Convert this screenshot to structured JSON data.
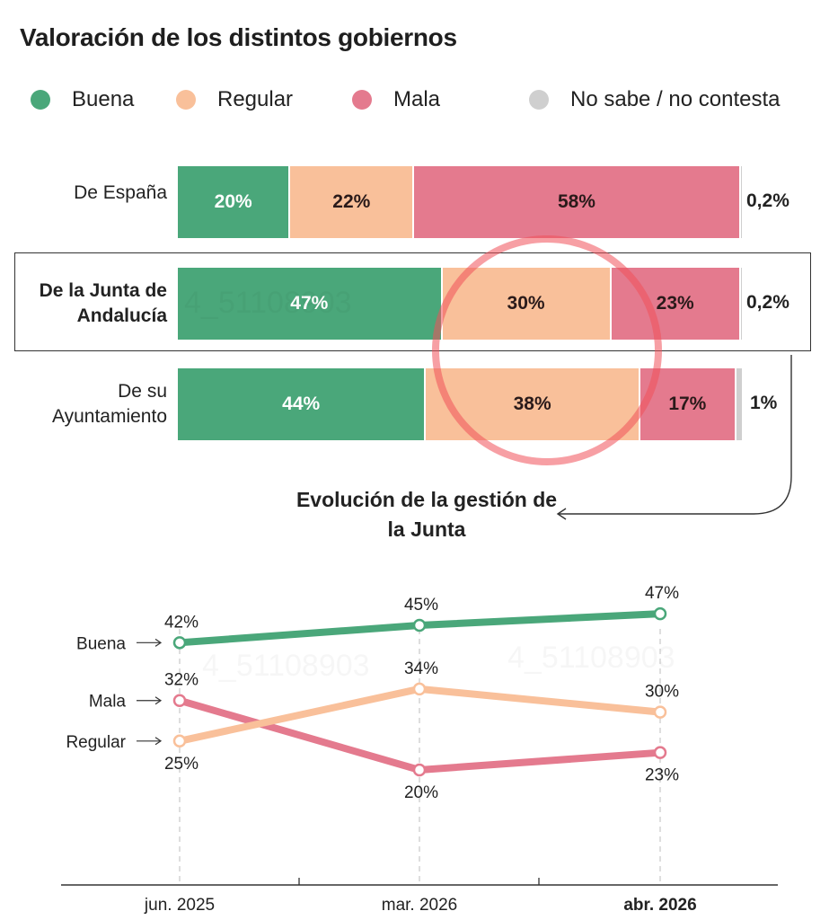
{
  "title": "Valoración de los distintos gobiernos",
  "legend": [
    {
      "label": "Buena",
      "color": "#4aa77a"
    },
    {
      "label": "Regular",
      "color": "#f9c09a"
    },
    {
      "label": "Mala",
      "color": "#e47a8e"
    },
    {
      "label": "No sabe / no contesta",
      "color": "#cfcfcf"
    }
  ],
  "watermark": "4_51108903",
  "chart_data": [
    {
      "type": "bar",
      "stacked": true,
      "orientation": "horizontal",
      "title": "Valoración de los distintos gobiernos",
      "categories": [
        "De España",
        "De la Junta de Andalucía",
        "De su Ayuntamiento"
      ],
      "category_lines": [
        [
          "De España"
        ],
        [
          "De la Junta de",
          "Andalucía"
        ],
        [
          "De su",
          "Ayuntamiento"
        ]
      ],
      "highlighted_category": "De la Junta de Andalucía",
      "series": [
        {
          "name": "Buena",
          "color": "#4aa77a",
          "values": [
            20,
            47,
            44
          ],
          "labels": [
            "20%",
            "47%",
            "44%"
          ]
        },
        {
          "name": "Regular",
          "color": "#f9c09a",
          "values": [
            22,
            30,
            38
          ],
          "labels": [
            "22%",
            "30%",
            "38%"
          ]
        },
        {
          "name": "Mala",
          "color": "#e47a8e",
          "values": [
            58,
            23,
            17
          ],
          "labels": [
            "58%",
            "23%",
            "17%"
          ]
        },
        {
          "name": "No sabe / no contesta",
          "color": "#cfcfcf",
          "values": [
            0.2,
            0.2,
            1
          ],
          "labels": [
            "0,2%",
            "0,2%",
            "1%"
          ]
        }
      ],
      "xlim": [
        0,
        100
      ],
      "legend": "top"
    },
    {
      "type": "line",
      "title": "Evolución de la gestión de la Junta",
      "x": [
        "jun. 2025",
        "mar. 2026",
        "abr. 2026"
      ],
      "x_bold": "abr. 2026",
      "series": [
        {
          "name": "Buena",
          "color": "#4aa77a",
          "values": [
            42,
            45,
            47
          ],
          "labels": [
            "42%",
            "45%",
            "47%"
          ],
          "label_pos": [
            "above",
            "above",
            "above"
          ]
        },
        {
          "name": "Mala",
          "color": "#e47a8e",
          "values": [
            32,
            20,
            23
          ],
          "labels": [
            "32%",
            "20%",
            "23%"
          ],
          "label_pos": [
            "above",
            "below",
            "below"
          ]
        },
        {
          "name": "Regular",
          "color": "#f9c09a",
          "values": [
            25,
            34,
            30
          ],
          "labels": [
            "25%",
            "34%",
            "30%"
          ],
          "label_pos": [
            "below",
            "above",
            "above"
          ]
        }
      ],
      "grid": false,
      "legend": "left-inline"
    }
  ]
}
